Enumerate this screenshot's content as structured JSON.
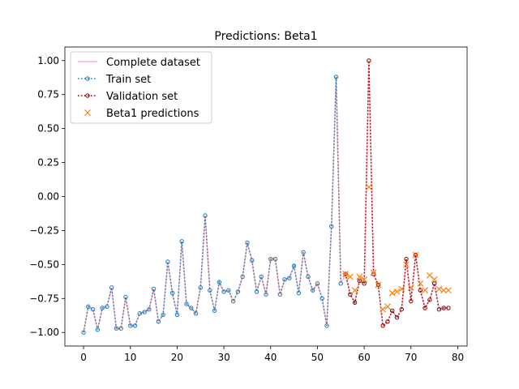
{
  "chart_data": {
    "type": "line",
    "title": "Predictions: Beta1",
    "xlabel": "",
    "ylabel": "",
    "xlim": [
      -4,
      82
    ],
    "ylim": [
      -1.1,
      1.1
    ],
    "xticks": [
      0,
      10,
      20,
      30,
      40,
      50,
      60,
      70,
      80
    ],
    "yticks": [
      -1.0,
      -0.75,
      -0.5,
      -0.25,
      0.0,
      0.25,
      0.5,
      0.75,
      1.0
    ],
    "xtick_labels": [
      "0",
      "10",
      "20",
      "30",
      "40",
      "50",
      "60",
      "70",
      "80"
    ],
    "ytick_labels": [
      "−1.00",
      "−0.75",
      "−0.50",
      "−0.25",
      "0.00",
      "0.25",
      "0.50",
      "0.75",
      "1.00"
    ],
    "grid": false,
    "legend_position": "top-left",
    "series": [
      {
        "name": "Complete dataset",
        "style": "solid-line",
        "color": "#ffb6c1",
        "x": [
          0,
          1,
          2,
          3,
          4,
          5,
          6,
          7,
          8,
          9,
          10,
          11,
          12,
          13,
          14,
          15,
          16,
          17,
          18,
          19,
          20,
          21,
          22,
          23,
          24,
          25,
          26,
          27,
          28,
          29,
          30,
          31,
          32,
          33,
          34,
          35,
          36,
          37,
          38,
          39,
          40,
          41,
          42,
          43,
          44,
          45,
          46,
          47,
          48,
          49,
          50,
          51,
          52,
          53,
          54,
          55,
          56,
          57,
          58,
          59,
          60,
          61,
          62,
          63,
          64,
          65,
          66,
          67,
          68,
          69,
          70,
          71,
          72,
          73,
          74,
          75,
          76,
          77,
          78
        ],
        "y": [
          -1.0,
          -0.81,
          -0.83,
          -0.98,
          -0.82,
          -0.81,
          -0.67,
          -0.97,
          -0.97,
          -0.74,
          -0.95,
          -0.95,
          -0.86,
          -0.85,
          -0.83,
          -0.68,
          -0.92,
          -0.87,
          -0.48,
          -0.71,
          -0.87,
          -0.33,
          -0.79,
          -0.82,
          -0.86,
          -0.67,
          -0.14,
          -0.69,
          -0.84,
          -0.63,
          -0.7,
          -0.69,
          -0.77,
          -0.7,
          -0.59,
          -0.34,
          -0.47,
          -0.7,
          -0.59,
          -0.72,
          -0.46,
          -0.46,
          -0.72,
          -0.61,
          -0.6,
          -0.51,
          -0.71,
          -0.41,
          -0.59,
          -0.69,
          -0.64,
          -0.75,
          -0.95,
          -0.22,
          0.88,
          -0.64,
          -0.57,
          -0.72,
          -0.78,
          -0.62,
          -0.64,
          1.0,
          -0.57,
          -0.65,
          -0.95,
          -0.92,
          -0.84,
          -0.89,
          -0.83,
          -0.46,
          -0.77,
          -0.43,
          -0.69,
          -0.82,
          -0.76,
          -0.64,
          -0.83,
          -0.82,
          -0.82
        ]
      },
      {
        "name": "Train set",
        "style": "dotted-circle",
        "color": "#1f77b4",
        "x": [
          0,
          1,
          2,
          3,
          4,
          5,
          6,
          7,
          8,
          9,
          10,
          11,
          12,
          13,
          14,
          15,
          16,
          17,
          18,
          19,
          20,
          21,
          22,
          23,
          24,
          25,
          26,
          27,
          28,
          29,
          30,
          31,
          32,
          33,
          34,
          35,
          36,
          37,
          38,
          39,
          40,
          41,
          42,
          43,
          44,
          45,
          46,
          47,
          48,
          49,
          50,
          51,
          52,
          53,
          54,
          55
        ],
        "y": [
          -1.0,
          -0.81,
          -0.83,
          -0.98,
          -0.82,
          -0.81,
          -0.67,
          -0.97,
          -0.97,
          -0.74,
          -0.95,
          -0.95,
          -0.86,
          -0.85,
          -0.83,
          -0.68,
          -0.92,
          -0.87,
          -0.48,
          -0.71,
          -0.87,
          -0.33,
          -0.79,
          -0.82,
          -0.86,
          -0.67,
          -0.14,
          -0.69,
          -0.84,
          -0.63,
          -0.7,
          -0.69,
          -0.77,
          -0.7,
          -0.59,
          -0.34,
          -0.47,
          -0.7,
          -0.59,
          -0.72,
          -0.46,
          -0.46,
          -0.72,
          -0.61,
          -0.6,
          -0.51,
          -0.71,
          -0.41,
          -0.59,
          -0.69,
          -0.64,
          -0.75,
          -0.95,
          -0.22,
          0.88,
          -0.64
        ]
      },
      {
        "name": "Validation set",
        "style": "dotted-circle",
        "color": "#8b0000",
        "x": [
          56,
          57,
          58,
          59,
          60,
          61,
          62,
          63,
          64,
          65,
          66,
          67,
          68,
          69,
          70,
          71,
          72,
          73,
          74,
          75,
          76,
          77,
          78
        ],
        "y": [
          -0.57,
          -0.72,
          -0.78,
          -0.62,
          -0.64,
          1.0,
          -0.57,
          -0.65,
          -0.95,
          -0.92,
          -0.84,
          -0.89,
          -0.83,
          -0.46,
          -0.77,
          -0.43,
          -0.69,
          -0.82,
          -0.76,
          -0.64,
          -0.83,
          -0.82,
          -0.82
        ]
      },
      {
        "name": "Beta1 predictions",
        "style": "x-marker",
        "color": "#ff7f0e",
        "x": [
          56,
          57,
          58,
          59,
          60,
          61,
          62,
          63,
          64,
          65,
          66,
          67,
          68,
          69,
          70,
          71,
          72,
          73,
          74,
          75,
          76,
          77,
          78
        ],
        "y": [
          -0.57,
          -0.59,
          -0.69,
          -0.59,
          -0.61,
          0.07,
          -0.56,
          -0.65,
          -0.83,
          -0.81,
          -0.71,
          -0.7,
          -0.68,
          -0.5,
          -0.67,
          -0.43,
          -0.64,
          -0.69,
          -0.58,
          -0.61,
          -0.68,
          -0.69,
          -0.69
        ]
      }
    ]
  }
}
